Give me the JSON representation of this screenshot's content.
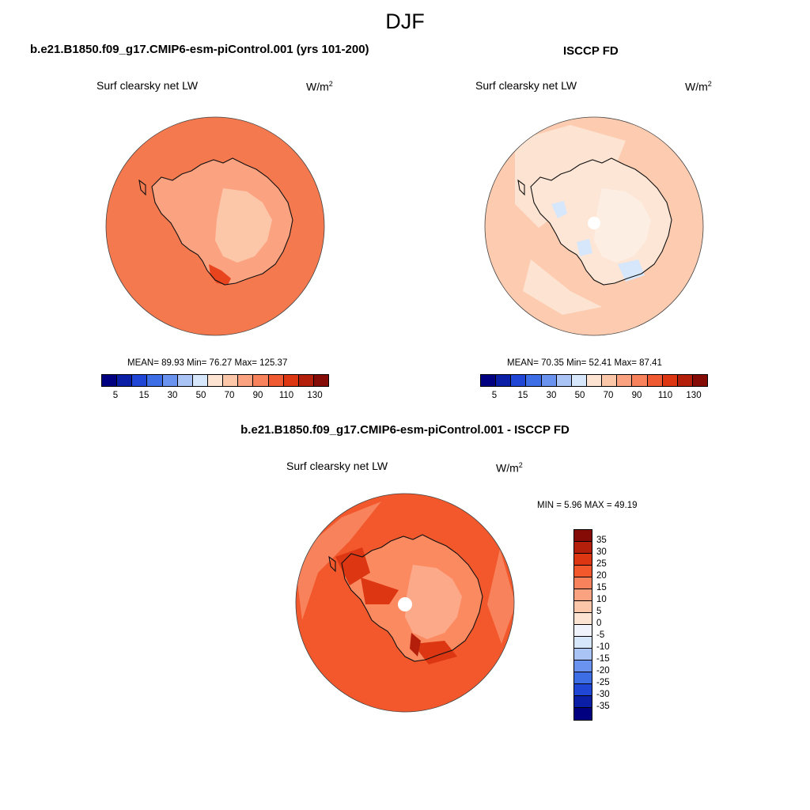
{
  "figure": {
    "season": "DJF",
    "variable": "Surf clearsky net LW",
    "units_base": "W/m",
    "units_exp": "2"
  },
  "panels": [
    {
      "title": "b.e21.B1850.f09_g17.CMIP6-esm-piControl.001 (yrs 101-200)",
      "stats": "MEAN=  89.93  Min=  76.27  Max= 125.37",
      "ocean_color": "#f5794f",
      "land_color": "#fba281",
      "interior_color": "#fcc6a8"
    },
    {
      "title": "ISCCP FD",
      "stats": "MEAN=  70.35  Min=  52.41  Max=  87.41",
      "ocean_color": "#fdccb0",
      "land_color": "#fde6d6",
      "interior_color": "#fdeee4"
    },
    {
      "title": "b.e21.B1850.f09_g17.CMIP6-esm-piControl.001 - ISCCP FD",
      "stats": "MIN =    5.96 MAX =  49.19",
      "ocean_color": "#f2582c",
      "land_color": "#fb8a60",
      "interior_color": "#fca98a"
    }
  ],
  "abs_colorbar": {
    "colors": [
      "#000080",
      "#0a1ea6",
      "#1f46d4",
      "#3d6ee6",
      "#6a93ef",
      "#a9c4f5",
      "#d6e6fb",
      "#fde3d2",
      "#fcc6a8",
      "#fba281",
      "#f7825c",
      "#ef5a33",
      "#dc3612",
      "#b31f0a",
      "#850c06"
    ],
    "ticks": [
      "5",
      "15",
      "30",
      "50",
      "70",
      "90",
      "110",
      "130"
    ]
  },
  "diff_colorbar": {
    "colors": [
      "#850c06",
      "#b31f0a",
      "#dc3612",
      "#f2582c",
      "#f7825c",
      "#fba281",
      "#fcc6a8",
      "#fde3d2",
      "#f0f3fb",
      "#d6e6fb",
      "#a9c4f5",
      "#6a93ef",
      "#3d6ee6",
      "#1f46d4",
      "#0a1ea6",
      "#000080"
    ],
    "ticks": [
      "35",
      "30",
      "25",
      "20",
      "15",
      "10",
      "5",
      "0",
      "-5",
      "-10",
      "-15",
      "-20",
      "-25",
      "-30",
      "-35"
    ]
  }
}
